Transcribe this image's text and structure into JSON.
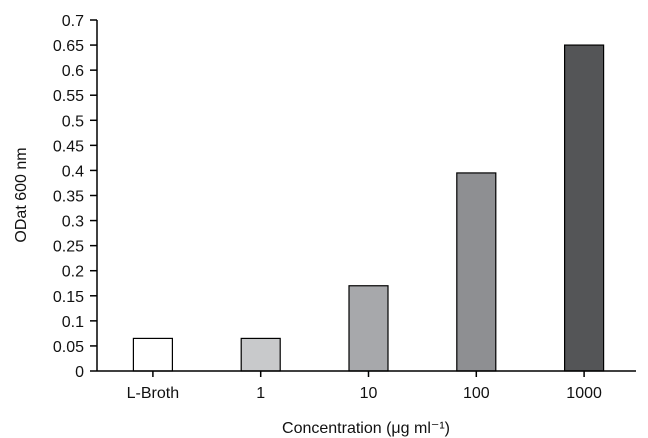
{
  "chart_data": {
    "type": "bar",
    "categories": [
      "L-Broth",
      "1",
      "10",
      "100",
      "1000"
    ],
    "values": [
      0.065,
      0.065,
      0.17,
      0.395,
      0.65
    ],
    "bar_colors": [
      "#ffffff",
      "#c8c9cb",
      "#a7a8ab",
      "#8e8f92",
      "#545557"
    ],
    "bar_edge_color": "#000000",
    "xlabel": "Concentration (μg ml⁻¹)",
    "ylabel": "ODat 600 nm",
    "ylim": [
      0,
      0.7
    ],
    "yticks": [
      0,
      0.05,
      0.1,
      0.15,
      0.2,
      0.25,
      0.3,
      0.35,
      0.4,
      0.45,
      0.5,
      0.55,
      0.6,
      0.65,
      0.7
    ],
    "ytick_labels": [
      "0",
      "0.05",
      "0.1",
      "0.15",
      "0.2",
      "0.25",
      "0.3",
      "0.35",
      "0.4",
      "0.45",
      "0.5",
      "0.55",
      "0.6",
      "0.65",
      "0.7"
    ],
    "grid": false,
    "legend": "none"
  }
}
